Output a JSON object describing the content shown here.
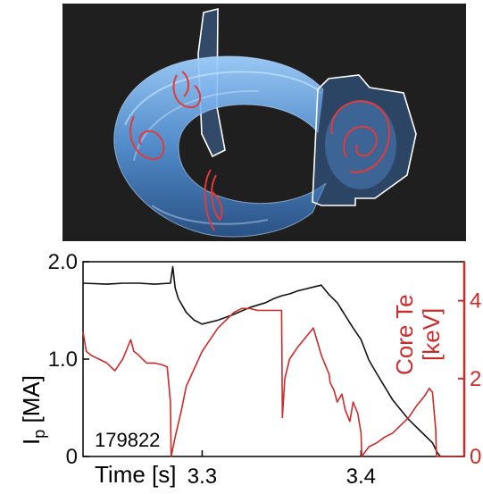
{
  "image": {
    "type": "3d-torus-rendering",
    "background": "#1f1f1f",
    "torus_color": "#6aaef0",
    "contour_color": "#e23a3a",
    "boundary_color": "#ffffff"
  },
  "chart_data": {
    "type": "line",
    "title": "",
    "xlabel": "Time [s]",
    "xlim": [
      3.225,
      3.465
    ],
    "x_ticks": [
      3.3,
      3.4
    ],
    "x_tick_labels": [
      "3.3",
      "3.4"
    ],
    "left_axis": {
      "label_main": "I",
      "label_sub": "p",
      "label_unit": " [MA]",
      "ylim": [
        0,
        2.0
      ],
      "ticks": [
        0,
        1.0,
        2.0
      ],
      "tick_labels": [
        "0",
        "1.0",
        "2.0"
      ],
      "color": "#111111"
    },
    "right_axis": {
      "label_line1": "Core Te",
      "label_line2": "[keV]",
      "ylim": [
        0,
        5
      ],
      "ticks": [
        0,
        2,
        4
      ],
      "tick_labels": [
        "0",
        "2",
        "4"
      ],
      "color": "#cc2b2b"
    },
    "annotation": "179822",
    "grid": false,
    "series": [
      {
        "axis": "left",
        "color": "#111111",
        "x": [
          3.225,
          3.24,
          3.25,
          3.26,
          3.27,
          3.28,
          3.2815,
          3.283,
          3.285,
          3.29,
          3.295,
          3.3,
          3.31,
          3.32,
          3.33,
          3.34,
          3.345,
          3.35,
          3.355,
          3.36,
          3.365,
          3.37,
          3.375,
          3.38,
          3.385,
          3.39,
          3.395,
          3.4,
          3.405,
          3.41,
          3.42,
          3.43,
          3.44,
          3.445,
          3.448,
          3.45,
          3.455,
          3.465
        ],
        "values": [
          1.78,
          1.77,
          1.78,
          1.78,
          1.77,
          1.78,
          1.95,
          1.73,
          1.62,
          1.48,
          1.4,
          1.36,
          1.4,
          1.46,
          1.53,
          1.58,
          1.62,
          1.65,
          1.67,
          1.7,
          1.72,
          1.74,
          1.76,
          1.66,
          1.58,
          1.45,
          1.32,
          1.2,
          0.99,
          0.85,
          0.58,
          0.38,
          0.22,
          0.14,
          0.04,
          0.0,
          0.0,
          0.0
        ]
      },
      {
        "axis": "right",
        "color": "#cc2b2b",
        "x": [
          3.225,
          3.227,
          3.23,
          3.235,
          3.24,
          3.245,
          3.25,
          3.255,
          3.257,
          3.26,
          3.265,
          3.27,
          3.275,
          3.278,
          3.28,
          3.2805,
          3.283,
          3.287,
          3.29,
          3.3,
          3.31,
          3.32,
          3.325,
          3.33,
          3.335,
          3.34,
          3.345,
          3.35,
          3.3505,
          3.352,
          3.355,
          3.36,
          3.365,
          3.37,
          3.375,
          3.38,
          3.3805,
          3.383,
          3.385,
          3.388,
          3.39,
          3.393,
          3.395,
          3.398,
          3.4,
          3.4005,
          3.405,
          3.41,
          3.415,
          3.42,
          3.425,
          3.43,
          3.435,
          3.44,
          3.443,
          3.445,
          3.447,
          3.4475,
          3.45,
          3.465
        ],
        "values": [
          3.2,
          2.7,
          2.6,
          2.5,
          2.4,
          2.2,
          2.5,
          3.0,
          2.7,
          2.6,
          2.4,
          2.4,
          2.35,
          2.3,
          1.4,
          0.0,
          0.5,
          1.2,
          1.8,
          2.7,
          3.3,
          3.7,
          3.8,
          3.8,
          3.75,
          3.75,
          3.75,
          3.75,
          1.0,
          2.0,
          2.5,
          2.8,
          3.05,
          3.3,
          2.6,
          2.1,
          1.9,
          1.7,
          1.4,
          1.6,
          1.2,
          0.9,
          1.4,
          1.1,
          0.6,
          0.0,
          0.25,
          0.35,
          0.5,
          0.6,
          0.8,
          1.0,
          1.3,
          1.55,
          1.75,
          1.65,
          0.7,
          0.0,
          0.0,
          0.0
        ]
      }
    ]
  }
}
